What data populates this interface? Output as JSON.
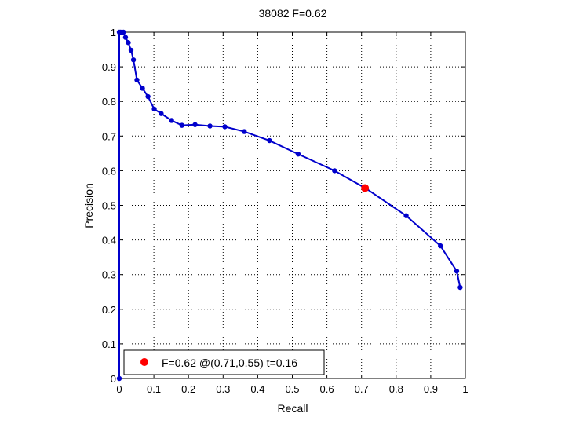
{
  "chart_data": {
    "type": "line",
    "title": "38082 F=0.62",
    "xlabel": "Recall",
    "ylabel": "Precision",
    "xlim": [
      0,
      1
    ],
    "ylim": [
      0,
      1
    ],
    "grid": true,
    "xticks": [
      0,
      0.1,
      0.2,
      0.3,
      0.4,
      0.5,
      0.6,
      0.7,
      0.8,
      0.9,
      1
    ],
    "yticks": [
      0,
      0.1,
      0.2,
      0.3,
      0.4,
      0.5,
      0.6,
      0.7,
      0.8,
      0.9,
      1
    ],
    "xtick_labels": [
      "0",
      "0.1",
      "0.2",
      "0.3",
      "0.4",
      "0.5",
      "0.6",
      "0.7",
      "0.8",
      "0.9",
      "1"
    ],
    "ytick_labels": [
      "0",
      "0.1",
      "0.2",
      "0.3",
      "0.4",
      "0.5",
      "0.6",
      "0.7",
      "0.8",
      "0.9",
      "1"
    ],
    "series": [
      {
        "color": "#0000cc",
        "x": [
          0.0,
          0.0,
          0.004,
          0.012,
          0.018,
          0.026,
          0.034,
          0.041,
          0.051,
          0.067,
          0.083,
          0.101,
          0.121,
          0.151,
          0.181,
          0.219,
          0.262,
          0.305,
          0.361,
          0.434,
          0.517,
          0.622,
          0.714,
          0.829,
          0.928,
          0.975,
          0.985
        ],
        "y": [
          0.0,
          1.0,
          1.0,
          1.0,
          0.985,
          0.97,
          0.948,
          0.92,
          0.862,
          0.838,
          0.814,
          0.778,
          0.765,
          0.745,
          0.731,
          0.733,
          0.729,
          0.727,
          0.713,
          0.687,
          0.648,
          0.6,
          0.548,
          0.47,
          0.383,
          0.31,
          0.263
        ]
      }
    ],
    "best_point": {
      "x": 0.71,
      "y": 0.55,
      "color": "#ff0000"
    },
    "legend": {
      "position": "bottom-left",
      "label": "F=0.62 @(0.71,0.55) t=0.16"
    }
  }
}
